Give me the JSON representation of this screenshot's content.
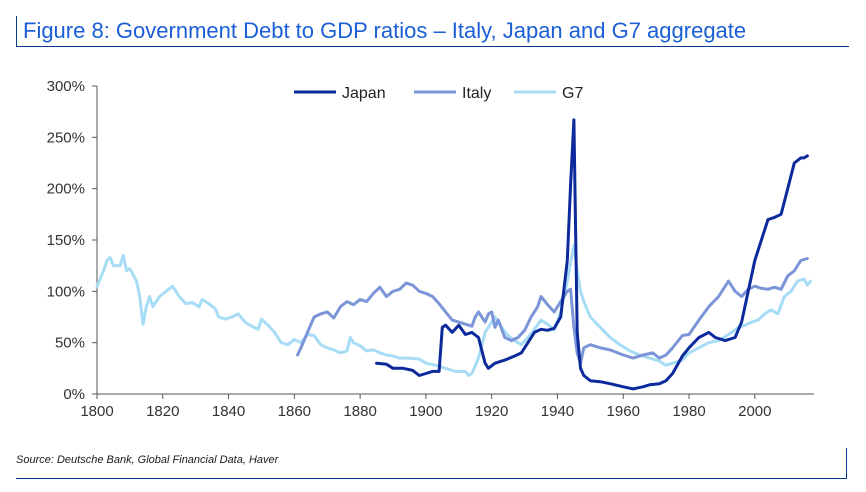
{
  "title": "Figure 8: Government Debt to GDP ratios – Italy, Japan and G7 aggregate",
  "source": "Source: Deutsche Bank, Global Financial Data, Haver",
  "chart_data": {
    "type": "line",
    "title": "Figure 8: Government Debt to GDP ratios – Italy, Japan and G7 aggregate",
    "xlim": [
      1800,
      2018
    ],
    "ylim": [
      0,
      300
    ],
    "x_ticks": [
      1800,
      1820,
      1840,
      1860,
      1880,
      1900,
      1920,
      1940,
      1960,
      1980,
      2000
    ],
    "y_ticks": [
      0,
      50,
      100,
      150,
      200,
      250,
      300
    ],
    "y_tick_labels": [
      "0%",
      "50%",
      "100%",
      "150%",
      "200%",
      "250%",
      "300%"
    ],
    "grid": false,
    "legend_position": "top",
    "series": [
      {
        "name": "Japan",
        "color": "#0d2a9c",
        "points": [
          [
            1885,
            30
          ],
          [
            1888,
            29
          ],
          [
            1890,
            25
          ],
          [
            1893,
            25
          ],
          [
            1896,
            23
          ],
          [
            1898,
            18
          ],
          [
            1900,
            20
          ],
          [
            1902,
            22
          ],
          [
            1904,
            22
          ],
          [
            1905,
            65
          ],
          [
            1906,
            67
          ],
          [
            1908,
            60
          ],
          [
            1910,
            67
          ],
          [
            1912,
            58
          ],
          [
            1914,
            60
          ],
          [
            1916,
            55
          ],
          [
            1918,
            30
          ],
          [
            1919,
            25
          ],
          [
            1921,
            30
          ],
          [
            1924,
            33
          ],
          [
            1927,
            37
          ],
          [
            1929,
            40
          ],
          [
            1931,
            50
          ],
          [
            1933,
            60
          ],
          [
            1935,
            63
          ],
          [
            1937,
            62
          ],
          [
            1939,
            64
          ],
          [
            1941,
            75
          ],
          [
            1943,
            130
          ],
          [
            1944,
            204
          ],
          [
            1945,
            267
          ],
          [
            1946,
            60
          ],
          [
            1947,
            25
          ],
          [
            1948,
            18
          ],
          [
            1950,
            13
          ],
          [
            1953,
            12
          ],
          [
            1956,
            10
          ],
          [
            1960,
            7
          ],
          [
            1963,
            5
          ],
          [
            1966,
            7
          ],
          [
            1968,
            9
          ],
          [
            1971,
            10
          ],
          [
            1973,
            13
          ],
          [
            1975,
            20
          ],
          [
            1978,
            37
          ],
          [
            1980,
            45
          ],
          [
            1983,
            55
          ],
          [
            1986,
            60
          ],
          [
            1988,
            55
          ],
          [
            1991,
            52
          ],
          [
            1994,
            55
          ],
          [
            1996,
            70
          ],
          [
            1998,
            100
          ],
          [
            2000,
            130
          ],
          [
            2002,
            150
          ],
          [
            2004,
            170
          ],
          [
            2006,
            172
          ],
          [
            2008,
            175
          ],
          [
            2010,
            200
          ],
          [
            2012,
            225
          ],
          [
            2014,
            230
          ],
          [
            2015,
            230
          ],
          [
            2016,
            232
          ]
        ]
      },
      {
        "name": "Italy",
        "color": "#7b95d8",
        "points": [
          [
            1861,
            38
          ],
          [
            1862,
            45
          ],
          [
            1864,
            60
          ],
          [
            1866,
            75
          ],
          [
            1868,
            78
          ],
          [
            1870,
            80
          ],
          [
            1872,
            74
          ],
          [
            1874,
            85
          ],
          [
            1876,
            90
          ],
          [
            1878,
            87
          ],
          [
            1880,
            92
          ],
          [
            1882,
            90
          ],
          [
            1884,
            98
          ],
          [
            1886,
            104
          ],
          [
            1888,
            95
          ],
          [
            1890,
            100
          ],
          [
            1892,
            102
          ],
          [
            1894,
            108
          ],
          [
            1896,
            106
          ],
          [
            1898,
            100
          ],
          [
            1900,
            98
          ],
          [
            1902,
            95
          ],
          [
            1904,
            88
          ],
          [
            1906,
            80
          ],
          [
            1908,
            72
          ],
          [
            1910,
            70
          ],
          [
            1912,
            68
          ],
          [
            1914,
            66
          ],
          [
            1915,
            75
          ],
          [
            1916,
            80
          ],
          [
            1918,
            70
          ],
          [
            1919,
            78
          ],
          [
            1920,
            80
          ],
          [
            1921,
            65
          ],
          [
            1922,
            72
          ],
          [
            1924,
            55
          ],
          [
            1926,
            52
          ],
          [
            1928,
            55
          ],
          [
            1930,
            62
          ],
          [
            1932,
            75
          ],
          [
            1934,
            85
          ],
          [
            1935,
            95
          ],
          [
            1937,
            87
          ],
          [
            1939,
            80
          ],
          [
            1941,
            90
          ],
          [
            1943,
            100
          ],
          [
            1944,
            102
          ],
          [
            1945,
            65
          ],
          [
            1946,
            40
          ],
          [
            1947,
            30
          ],
          [
            1948,
            45
          ],
          [
            1950,
            48
          ],
          [
            1953,
            45
          ],
          [
            1956,
            43
          ],
          [
            1960,
            38
          ],
          [
            1963,
            35
          ],
          [
            1966,
            38
          ],
          [
            1969,
            40
          ],
          [
            1971,
            35
          ],
          [
            1973,
            38
          ],
          [
            1975,
            45
          ],
          [
            1978,
            57
          ],
          [
            1980,
            58
          ],
          [
            1983,
            72
          ],
          [
            1986,
            85
          ],
          [
            1989,
            95
          ],
          [
            1992,
            110
          ],
          [
            1994,
            100
          ],
          [
            1996,
            95
          ],
          [
            1998,
            102
          ],
          [
            2000,
            105
          ],
          [
            2002,
            103
          ],
          [
            2004,
            102
          ],
          [
            2006,
            104
          ],
          [
            2008,
            102
          ],
          [
            2010,
            115
          ],
          [
            2012,
            120
          ],
          [
            2014,
            130
          ],
          [
            2016,
            132
          ]
        ]
      },
      {
        "name": "G7",
        "color": "#a7dcf6",
        "points": [
          [
            1800,
            105
          ],
          [
            1802,
            120
          ],
          [
            1803,
            130
          ],
          [
            1804,
            133
          ],
          [
            1805,
            125
          ],
          [
            1807,
            125
          ],
          [
            1808,
            135
          ],
          [
            1809,
            120
          ],
          [
            1810,
            122
          ],
          [
            1812,
            110
          ],
          [
            1813,
            95
          ],
          [
            1814,
            68
          ],
          [
            1815,
            85
          ],
          [
            1816,
            95
          ],
          [
            1817,
            85
          ],
          [
            1819,
            95
          ],
          [
            1821,
            100
          ],
          [
            1823,
            105
          ],
          [
            1825,
            95
          ],
          [
            1827,
            88
          ],
          [
            1829,
            89
          ],
          [
            1831,
            85
          ],
          [
            1832,
            92
          ],
          [
            1834,
            88
          ],
          [
            1836,
            83
          ],
          [
            1837,
            75
          ],
          [
            1839,
            73
          ],
          [
            1841,
            75
          ],
          [
            1843,
            78
          ],
          [
            1845,
            70
          ],
          [
            1847,
            66
          ],
          [
            1849,
            63
          ],
          [
            1850,
            73
          ],
          [
            1852,
            67
          ],
          [
            1854,
            60
          ],
          [
            1856,
            50
          ],
          [
            1858,
            48
          ],
          [
            1860,
            53
          ],
          [
            1862,
            50
          ],
          [
            1864,
            58
          ],
          [
            1866,
            57
          ],
          [
            1868,
            48
          ],
          [
            1870,
            45
          ],
          [
            1872,
            43
          ],
          [
            1874,
            40
          ],
          [
            1876,
            42
          ],
          [
            1877,
            55
          ],
          [
            1878,
            50
          ],
          [
            1880,
            47
          ],
          [
            1882,
            42
          ],
          [
            1884,
            43
          ],
          [
            1886,
            40
          ],
          [
            1888,
            38
          ],
          [
            1890,
            37
          ],
          [
            1892,
            35
          ],
          [
            1895,
            35
          ],
          [
            1898,
            34
          ],
          [
            1900,
            30
          ],
          [
            1903,
            28
          ],
          [
            1906,
            25
          ],
          [
            1909,
            22
          ],
          [
            1912,
            22
          ],
          [
            1913,
            18
          ],
          [
            1914,
            20
          ],
          [
            1916,
            35
          ],
          [
            1918,
            60
          ],
          [
            1920,
            70
          ],
          [
            1921,
            75
          ],
          [
            1923,
            65
          ],
          [
            1925,
            57
          ],
          [
            1927,
            52
          ],
          [
            1929,
            48
          ],
          [
            1931,
            55
          ],
          [
            1933,
            63
          ],
          [
            1935,
            72
          ],
          [
            1937,
            68
          ],
          [
            1939,
            62
          ],
          [
            1941,
            80
          ],
          [
            1943,
            110
          ],
          [
            1945,
            145
          ],
          [
            1946,
            120
          ],
          [
            1947,
            100
          ],
          [
            1948,
            90
          ],
          [
            1950,
            75
          ],
          [
            1953,
            65
          ],
          [
            1956,
            55
          ],
          [
            1959,
            48
          ],
          [
            1962,
            42
          ],
          [
            1965,
            38
          ],
          [
            1968,
            35
          ],
          [
            1971,
            32
          ],
          [
            1973,
            28
          ],
          [
            1975,
            30
          ],
          [
            1978,
            33
          ],
          [
            1980,
            40
          ],
          [
            1983,
            45
          ],
          [
            1986,
            50
          ],
          [
            1989,
            52
          ],
          [
            1992,
            58
          ],
          [
            1995,
            65
          ],
          [
            1997,
            67
          ],
          [
            1999,
            70
          ],
          [
            2001,
            72
          ],
          [
            2003,
            78
          ],
          [
            2005,
            82
          ],
          [
            2007,
            78
          ],
          [
            2009,
            95
          ],
          [
            2011,
            100
          ],
          [
            2013,
            110
          ],
          [
            2015,
            112
          ],
          [
            2016,
            106
          ],
          [
            2017,
            110
          ]
        ]
      }
    ]
  }
}
